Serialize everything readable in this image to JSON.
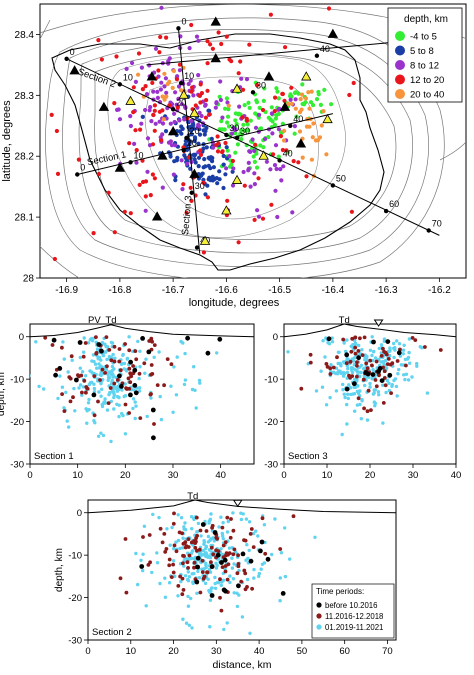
{
  "chart_data": [
    {
      "type": "scatter",
      "xlabel": "longitude, degrees",
      "ylabel": "latitude, degrees",
      "xlim": [
        -16.95,
        -16.15
      ],
      "ylim": [
        28.0,
        28.45
      ],
      "xticks": [
        "-16.9",
        "-16.8",
        "-16.7",
        "-16.6",
        "-16.5",
        "-16.4",
        "-16.3",
        "-16.2"
      ],
      "yticks": [
        "28",
        "28.1",
        "28.2",
        "28.3",
        "28.4"
      ],
      "legend": {
        "title": "depth, km",
        "placement": "top-right",
        "entries": [
          {
            "label": "-4 to 5",
            "color": "#33ee33"
          },
          {
            "label": "5 to 8",
            "color": "#1a3ea6"
          },
          {
            "label": "8 to 12",
            "color": "#9933cc"
          },
          {
            "label": "12 to 20",
            "color": "#e8151b"
          },
          {
            "label": "20 to 40",
            "color": "#f7943c"
          }
        ]
      },
      "sections": [
        {
          "name": "Section 1",
          "start": [
            -16.88,
            28.17
          ],
          "end": [
            -16.4,
            28.27
          ],
          "ticks": [
            {
              "label": "0",
              "lon": -16.88,
              "lat": 28.17
            },
            {
              "label": "10",
              "lon": -16.78,
              "lat": 28.19
            },
            {
              "label": "20",
              "lon": -16.68,
              "lat": 28.21
            },
            {
              "label": "30",
              "lon": -16.58,
              "lat": 28.23
            },
            {
              "label": "40",
              "lon": -16.48,
              "lat": 28.25
            }
          ]
        },
        {
          "name": "Section 2",
          "start": [
            -16.9,
            28.36
          ],
          "end": [
            -16.2,
            28.07
          ],
          "ticks": [
            {
              "label": "0",
              "lon": -16.9,
              "lat": 28.36
            },
            {
              "label": "10",
              "lon": -16.8,
              "lat": 28.318
            },
            {
              "label": "20",
              "lon": -16.7,
              "lat": 28.277
            },
            {
              "label": "30",
              "lon": -16.6,
              "lat": 28.235
            },
            {
              "label": "40",
              "lon": -16.5,
              "lat": 28.193
            },
            {
              "label": "50",
              "lon": -16.4,
              "lat": 28.152
            },
            {
              "label": "60",
              "lon": -16.3,
              "lat": 28.11
            },
            {
              "label": "70",
              "lon": -16.22,
              "lat": 28.078
            }
          ]
        },
        {
          "name": "Section 3",
          "start": [
            -16.65,
            28.04
          ],
          "end": [
            -16.69,
            28.41
          ],
          "ticks": [
            {
              "label": "0",
              "lon": -16.69,
              "lat": 28.41
            },
            {
              "label": "10",
              "lon": -16.685,
              "lat": 28.32
            },
            {
              "label": "20",
              "lon": -16.675,
              "lat": 28.23
            },
            {
              "label": "30",
              "lon": -16.665,
              "lat": 28.14
            },
            {
              "label": "40",
              "lon": -16.655,
              "lat": 28.05
            }
          ]
        },
        {
          "name": "",
          "start": [
            -16.75,
            28.35
          ],
          "end": [
            -16.25,
            28.39
          ],
          "ticks": [
            {
              "label": "30",
              "lon": -16.55,
              "lat": 28.305
            },
            {
              "label": "40",
              "lon": -16.43,
              "lat": 28.365
            }
          ]
        }
      ],
      "stations": [
        {
          "lon": -16.885,
          "lat": 28.34,
          "symbol": "black-triangle"
        },
        {
          "lon": -16.83,
          "lat": 28.28,
          "symbol": "black-triangle"
        },
        {
          "lon": -16.78,
          "lat": 28.29,
          "symbol": "yellow-triangle"
        },
        {
          "lon": -16.74,
          "lat": 28.33,
          "symbol": "black-triangle"
        },
        {
          "lon": -16.68,
          "lat": 28.3,
          "symbol": "yellow-triangle"
        },
        {
          "lon": -16.62,
          "lat": 28.36,
          "symbol": "black-triangle"
        },
        {
          "lon": -16.58,
          "lat": 28.31,
          "symbol": "yellow-triangle"
        },
        {
          "lon": -16.52,
          "lat": 28.33,
          "symbol": "black-triangle"
        },
        {
          "lon": -16.45,
          "lat": 28.33,
          "symbol": "yellow-triangle"
        },
        {
          "lon": -16.41,
          "lat": 28.26,
          "symbol": "yellow-triangle"
        },
        {
          "lon": -16.46,
          "lat": 28.22,
          "symbol": "black-triangle"
        },
        {
          "lon": -16.53,
          "lat": 28.2,
          "symbol": "yellow-triangle"
        },
        {
          "lon": -16.58,
          "lat": 28.16,
          "symbol": "yellow-triangle"
        },
        {
          "lon": -16.72,
          "lat": 28.2,
          "symbol": "black-triangle"
        },
        {
          "lon": -16.8,
          "lat": 28.18,
          "symbol": "black-triangle"
        },
        {
          "lon": -16.73,
          "lat": 28.1,
          "symbol": "black-triangle"
        },
        {
          "lon": -16.66,
          "lat": 28.17,
          "symbol": "black-triangle"
        },
        {
          "lon": -16.6,
          "lat": 28.11,
          "symbol": "yellow-triangle"
        },
        {
          "lon": -16.64,
          "lat": 28.06,
          "symbol": "yellow-triangle"
        },
        {
          "lon": -16.7,
          "lat": 28.24,
          "symbol": "black-triangle"
        },
        {
          "lon": -16.4,
          "lat": 28.4,
          "symbol": "black-triangle"
        },
        {
          "lon": -16.62,
          "lat": 28.42,
          "symbol": "black-triangle"
        },
        {
          "lon": -16.49,
          "lat": 28.28,
          "symbol": "black-triangle"
        },
        {
          "lon": -16.66,
          "lat": 28.27,
          "symbol": "yellow-triangle"
        }
      ],
      "epicenter_clusters": [
        {
          "color": "#33ee33",
          "lon": -16.53,
          "lat": 28.26,
          "spread": [
            0.04,
            0.03
          ],
          "count": 60
        },
        {
          "color": "#33ee33",
          "lon": -16.58,
          "lat": 28.22,
          "spread": [
            0.03,
            0.03
          ],
          "count": 40
        },
        {
          "color": "#33ee33",
          "lon": -16.46,
          "lat": 28.29,
          "spread": [
            0.03,
            0.02
          ],
          "count": 25
        },
        {
          "color": "#1a3ea6",
          "lon": -16.67,
          "lat": 28.23,
          "spread": [
            0.025,
            0.03
          ],
          "count": 90
        },
        {
          "color": "#1a3ea6",
          "lon": -16.63,
          "lat": 28.18,
          "spread": [
            0.015,
            0.02
          ],
          "count": 40
        },
        {
          "color": "#9933cc",
          "lon": -16.7,
          "lat": 28.28,
          "spread": [
            0.05,
            0.05
          ],
          "count": 120
        },
        {
          "color": "#9933cc",
          "lon": -16.55,
          "lat": 28.2,
          "spread": [
            0.05,
            0.06
          ],
          "count": 60
        },
        {
          "color": "#e8151b",
          "lon": -16.65,
          "lat": 28.26,
          "spread": [
            0.12,
            0.09
          ],
          "count": 140
        },
        {
          "color": "#f7943c",
          "lon": -16.45,
          "lat": 28.24,
          "spread": [
            0.02,
            0.04
          ],
          "count": 30
        },
        {
          "color": "#f7943c",
          "lon": -16.7,
          "lat": 28.3,
          "spread": [
            0.06,
            0.04
          ],
          "count": 15
        }
      ]
    },
    {
      "type": "scatter",
      "title": "Section 1",
      "ylabel": "depth, km",
      "xlim": [
        0,
        47
      ],
      "ylim": [
        -30,
        3
      ],
      "xticks": [
        "0",
        "10",
        "20",
        "30",
        "40"
      ],
      "yticks": [
        "0",
        "-10",
        "-20",
        "-30"
      ],
      "labels": [
        {
          "text": "PV",
          "x": 13.5
        },
        {
          "text": "Td",
          "x": 17
        }
      ],
      "topography": [
        [
          0,
          0
        ],
        [
          5,
          0.3
        ],
        [
          10,
          1
        ],
        [
          14,
          2
        ],
        [
          17,
          2.8
        ],
        [
          20,
          2
        ],
        [
          25,
          1.2
        ],
        [
          30,
          0.6
        ],
        [
          40,
          0.2
        ],
        [
          47,
          0
        ]
      ],
      "clusters": [
        {
          "period": "01.2019-11.2021",
          "x": 16,
          "y": -9,
          "sx": 3,
          "sy": 5,
          "count": 170
        },
        {
          "period": "01.2019-11.2021",
          "x": 20,
          "y": -10,
          "sx": 9,
          "sy": 6,
          "count": 90
        },
        {
          "period": "11.2016-12.2018",
          "x": 18,
          "y": -8,
          "sx": 7,
          "sy": 5,
          "count": 80
        },
        {
          "period": "before 10.2016",
          "x": 20,
          "y": -10,
          "sx": 8,
          "sy": 6,
          "count": 22
        }
      ]
    },
    {
      "type": "scatter",
      "title": "Section 3",
      "xlim": [
        0,
        40
      ],
      "ylim": [
        -30,
        3
      ],
      "xticks": [
        "0",
        "10",
        "20",
        "30",
        "40"
      ],
      "yticks": [
        "0",
        "-10",
        "-20",
        "-30"
      ],
      "labels": [
        {
          "text": "Td",
          "x": 14
        }
      ],
      "topography": [
        [
          0,
          0
        ],
        [
          5,
          0.6
        ],
        [
          10,
          1.6
        ],
        [
          14,
          3
        ],
        [
          17,
          2.4
        ],
        [
          22,
          1.8
        ],
        [
          28,
          1
        ],
        [
          35,
          0.5
        ],
        [
          40,
          0
        ]
      ],
      "clusters": [
        {
          "period": "01.2019-11.2021",
          "x": 16,
          "y": -8,
          "sx": 3,
          "sy": 4,
          "count": 130
        },
        {
          "period": "01.2019-11.2021",
          "x": 24,
          "y": -6,
          "sx": 2.5,
          "sy": 3,
          "count": 70
        },
        {
          "period": "01.2019-11.2021",
          "x": 20,
          "y": -8,
          "sx": 8,
          "sy": 5,
          "count": 70
        },
        {
          "period": "11.2016-12.2018",
          "x": 19,
          "y": -7,
          "sx": 6,
          "sy": 4,
          "count": 70
        },
        {
          "period": "before 10.2016",
          "x": 19,
          "y": -7,
          "sx": 6,
          "sy": 4,
          "count": 15
        }
      ]
    },
    {
      "type": "scatter",
      "title": "Section 2",
      "xlabel": "distance, km",
      "ylabel": "depth, km",
      "xlim": [
        0,
        72
      ],
      "ylim": [
        -30,
        3
      ],
      "xticks": [
        "0",
        "10",
        "20",
        "30",
        "40",
        "50",
        "60",
        "70"
      ],
      "yticks": [
        "0",
        "-10",
        "-20",
        "-30"
      ],
      "labels": [
        {
          "text": "Td",
          "x": 24.5
        }
      ],
      "topography": [
        [
          0,
          0
        ],
        [
          10,
          0.6
        ],
        [
          20,
          1.6
        ],
        [
          25,
          3
        ],
        [
          28,
          2.4
        ],
        [
          35,
          1.5
        ],
        [
          45,
          0.8
        ],
        [
          55,
          0.3
        ],
        [
          72,
          0
        ]
      ],
      "legend": {
        "title": "Time periods:",
        "placement": "bottom-right",
        "entries": [
          {
            "label": "before 10.2016",
            "color": "#000000"
          },
          {
            "label": "11.2016-12.2018",
            "color": "#8b1a1a"
          },
          {
            "label": "01.2019-11.2021",
            "color": "#5fd3f0"
          }
        ]
      },
      "clusters": [
        {
          "period": "01.2019-11.2021",
          "x": 27,
          "y": -10,
          "sx": 3,
          "sy": 4,
          "count": 150
        },
        {
          "period": "01.2019-11.2021",
          "x": 30,
          "y": -12,
          "sx": 10,
          "sy": 7,
          "count": 140
        },
        {
          "period": "11.2016-12.2018",
          "x": 28,
          "y": -10,
          "sx": 8,
          "sy": 5,
          "count": 120
        },
        {
          "period": "before 10.2016",
          "x": 30,
          "y": -10,
          "sx": 8,
          "sy": 5,
          "count": 20
        }
      ]
    }
  ]
}
